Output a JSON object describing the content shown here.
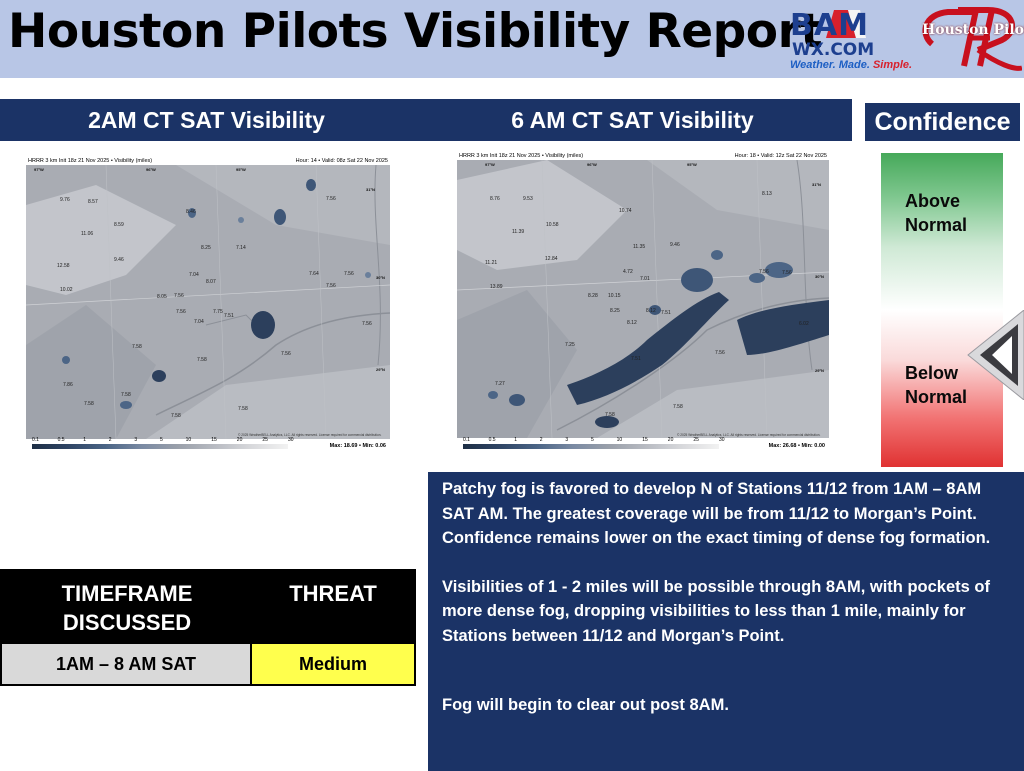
{
  "header": {
    "title": "Houston Pilots Visibility Report",
    "logo_bam": {
      "name": "BAM",
      "domain": "WX.COM",
      "tagline_part1": "Weather. Made. ",
      "tagline_part2": "Simple."
    },
    "logo_pilots": {
      "name": "Houston Pilots"
    }
  },
  "panels": {
    "left_title": "2AM CT SAT Visibility",
    "right_title": "6 AM CT SAT Visibility",
    "confidence_title": "Confidence"
  },
  "maps": {
    "left": {
      "header_left": "HRRR 3 km Init 18z 21 Nov 2025 • Visibility (miles)",
      "header_right": "Hour: 14 • Valid: 08z Sat 22 Nov 2025",
      "max_min": "Max: 18.69 • Min: 0.06",
      "credit": "© 2025 WeatherBELL Analytics, LLC. All rights reserved. License required for commercial distribution."
    },
    "right": {
      "header_left": "HRRR 3 km Init 18z 21 Nov 2025 • Visibility (miles)",
      "header_right": "Hour: 18 • Valid: 12z Sat 22 Nov 2025",
      "max_min": "Max: 26.68 • Min: 0.00",
      "credit": "© 2025 WeatherBELL Analytics, LLC. All rights reserved. License required for commercial distribution."
    },
    "scale_ticks": [
      "0.1",
      "0.5",
      "1",
      "2",
      "3",
      "5",
      "10",
      "15",
      "20",
      "25",
      "30"
    ]
  },
  "confidence": {
    "above_line1": "Above",
    "above_line2": "Normal",
    "below_line1": "Below",
    "below_line2": "Normal",
    "level": "below-normal"
  },
  "discussion": {
    "p1": "Patchy fog is favored to develop N of Stations 11/12 from 1AM – 8AM SAT AM. The greatest coverage will be from 11/12 to Morgan’s Point. Confidence remains lower on the exact timing of dense fog formation.",
    "p2": "Visibilities of 1 - 2 miles will be possible through 8AM, with pockets of more dense fog, dropping visibilities to less than 1 mile, mainly for Stations between 11/12 and Morgan’s Point.",
    "p3": "Fog will begin to clear out post 8AM."
  },
  "table": {
    "col1_line1": "TIMEFRAME",
    "col1_line2": "DISCUSSED",
    "col2": "THREAT",
    "timeframe": "1AM  – 8 AM SAT",
    "threat": "Medium",
    "threat_color": "#ffff4d"
  },
  "colors": {
    "header_bg": "#b8c6e6",
    "panel_navy": "#1b3366",
    "gauge_green": "#46a95a",
    "gauge_red": "#e03232"
  }
}
